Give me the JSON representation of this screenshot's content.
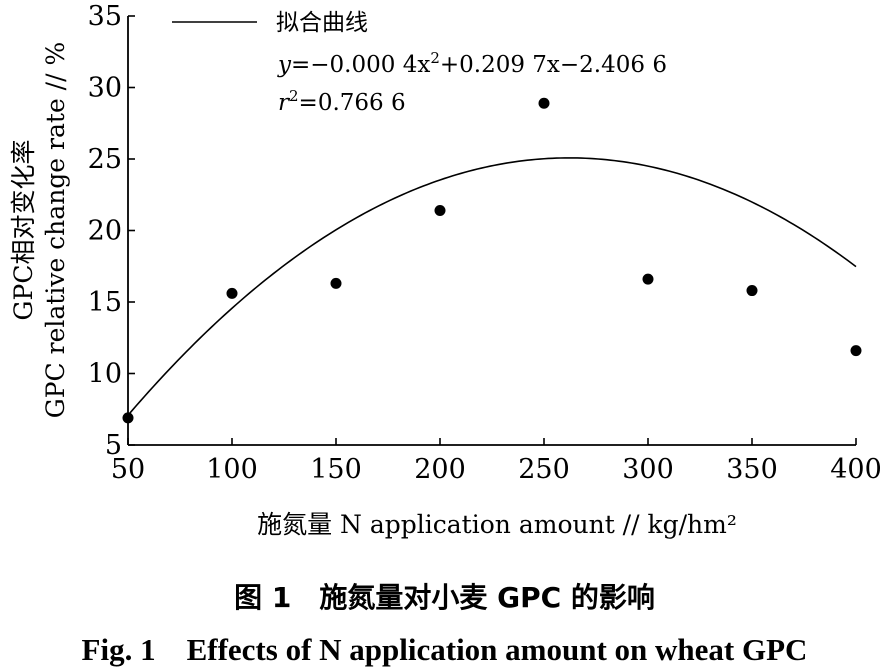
{
  "chart_data": {
    "type": "scatter",
    "x_ticks": [
      50,
      100,
      150,
      200,
      250,
      300,
      350,
      400
    ],
    "y_ticks": [
      5,
      10,
      15,
      20,
      25,
      30,
      35
    ],
    "xlim": [
      50,
      400
    ],
    "ylim": [
      5,
      35
    ],
    "xlabel": "施氮量 N application amount // kg/hm²",
    "ylabel_cn": "GPC相对变化率",
    "ylabel_en": "GPC relative change rate // %",
    "points": [
      {
        "x": 50,
        "y": 6.9
      },
      {
        "x": 100,
        "y": 15.6
      },
      {
        "x": 150,
        "y": 16.3
      },
      {
        "x": 200,
        "y": 21.4
      },
      {
        "x": 250,
        "y": 28.9
      },
      {
        "x": 300,
        "y": 16.6
      },
      {
        "x": 350,
        "y": 15.8
      },
      {
        "x": 400,
        "y": 11.6
      }
    ],
    "fit": {
      "a": -0.0004,
      "b": 0.2097,
      "c": -2.4066,
      "label": "拟合曲线"
    },
    "equation": {
      "prefix": "y",
      "mid1": "=−0.000 4x",
      "sup1": "2",
      "mid2": "+0.209 7x−2.406 6"
    },
    "r2": {
      "prefix": "r",
      "sup": "2",
      "value": "=0.766 6"
    },
    "grid": false,
    "legend_position": "top-left"
  },
  "caption": {
    "cn": "图 1　施氮量对小麦 GPC 的影响",
    "en": "Fig. 1　Effects of N application amount on wheat GPC"
  }
}
